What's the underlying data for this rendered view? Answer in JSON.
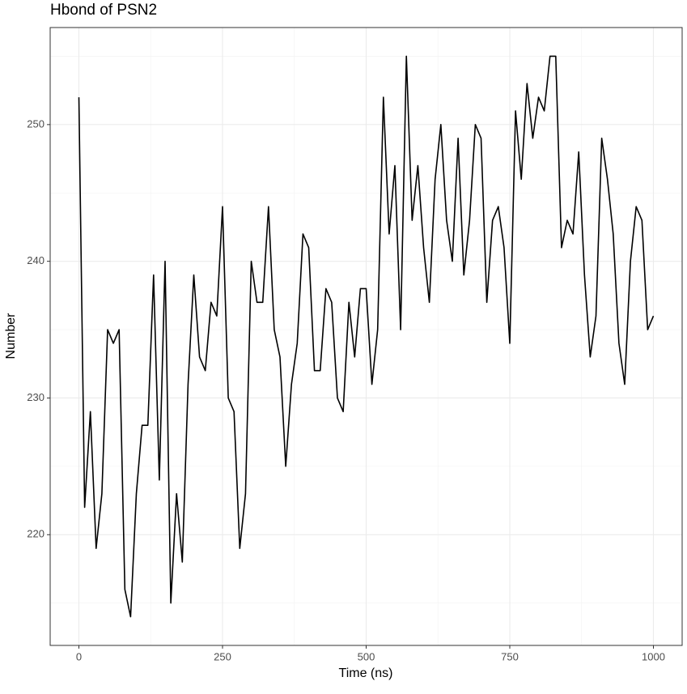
{
  "chart_data": {
    "type": "line",
    "title": "Hbond of PSN2",
    "x_label": "Time (ns)",
    "y_label": "Number",
    "x": [
      0,
      10,
      20,
      30,
      40,
      50,
      60,
      70,
      80,
      90,
      100,
      110,
      120,
      130,
      140,
      150,
      160,
      170,
      180,
      190,
      200,
      210,
      220,
      230,
      240,
      250,
      260,
      270,
      280,
      290,
      300,
      310,
      320,
      330,
      340,
      350,
      360,
      370,
      380,
      390,
      400,
      410,
      420,
      430,
      440,
      450,
      460,
      470,
      480,
      490,
      500,
      510,
      520,
      530,
      540,
      550,
      560,
      570,
      580,
      590,
      600,
      610,
      620,
      630,
      640,
      650,
      660,
      670,
      680,
      690,
      700,
      710,
      720,
      730,
      740,
      750,
      760,
      770,
      780,
      790,
      800,
      810,
      820,
      830,
      840,
      850,
      860,
      870,
      880,
      890,
      900,
      910,
      920,
      930,
      940,
      950,
      960,
      970,
      980,
      990,
      1000
    ],
    "series": [
      {
        "name": "Hbond",
        "color": "#000000",
        "values": [
          252,
          222,
          229,
          219,
          223,
          235,
          234,
          235,
          216,
          214,
          223,
          228,
          228,
          239,
          224,
          240,
          215,
          223,
          218,
          231,
          239,
          233,
          232,
          237,
          236,
          244,
          230,
          229,
          219,
          223,
          240,
          237,
          237,
          244,
          235,
          233,
          225,
          231,
          234,
          242,
          241,
          232,
          232,
          238,
          237,
          230,
          229,
          237,
          233,
          238,
          238,
          231,
          235,
          252,
          242,
          247,
          235,
          255,
          243,
          247,
          241,
          237,
          246,
          250,
          243,
          240,
          249,
          239,
          243,
          250,
          249,
          237,
          243,
          244,
          241,
          234,
          251,
          246,
          253,
          249,
          252,
          251,
          255,
          255,
          241,
          243,
          242,
          248,
          239,
          233,
          236,
          249,
          246,
          242,
          234,
          231,
          240,
          244,
          243,
          235,
          236
        ]
      }
    ],
    "xlim": [
      -50,
      1050
    ],
    "ylim": [
      211.9,
      257.1
    ],
    "xticks": [
      0,
      250,
      500,
      750,
      1000
    ],
    "yticks": [
      220,
      230,
      240,
      250
    ],
    "grid": true
  }
}
